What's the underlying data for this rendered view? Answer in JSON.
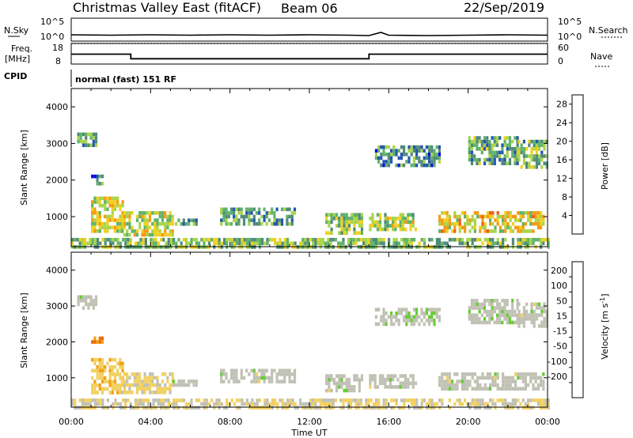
{
  "header": {
    "station": "Christmas Valley East (fitACF)",
    "beam": "Beam 06",
    "date": "22/Sep/2019"
  },
  "status_panels": {
    "nsky_label": "N.Sky",
    "nsky_ticks": [
      "10^5",
      "10^0"
    ],
    "nsearch_label": "N.Search",
    "nsearch_ticks": [
      "10^5",
      "10^0"
    ],
    "freq_label_1": "Freq.",
    "freq_label_2": "[MHz]",
    "freq_ticks": [
      "18",
      "8"
    ],
    "nave_label": "Nave",
    "nave_ticks": [
      "60",
      "0"
    ],
    "cpid_label": "CPID",
    "cpid_text": "normal (fast) 151 RF"
  },
  "x_axis": {
    "label": "Time UT",
    "tick_labels": [
      "00:00",
      "04:00",
      "08:00",
      "12:00",
      "16:00",
      "20:00",
      "00:00"
    ]
  },
  "colors": {
    "power_scale": [
      "#0a0ae6",
      "#2455b0",
      "#4f8a7a",
      "#5fb26a",
      "#a8d44a",
      "#f0d020",
      "#f59a10",
      "#ee5a14",
      "#e11a1a"
    ],
    "velocity_scale": [
      "#e60000",
      "#f06a00",
      "#f4a010",
      "#f2d060",
      "#c0c0b4",
      "#66cc33",
      "#3a9d40",
      "#3060b0",
      "#1a2ab8"
    ]
  },
  "chart_data": [
    {
      "type": "line",
      "panel": "N.Sky / N.Search",
      "x": [
        0,
        2,
        4,
        6,
        8,
        10,
        12,
        14,
        15,
        15.6,
        16,
        18,
        20,
        22,
        24
      ],
      "series": [
        {
          "name": "N.Sky",
          "values": [
            1.2,
            1.1,
            1.2,
            1.1,
            1.2,
            1.1,
            1.2,
            1.1,
            1.0,
            1.8,
            1.1,
            1.0,
            1.1,
            1.2,
            1.1
          ]
        }
      ],
      "ylim": [
        0,
        5
      ]
    },
    {
      "type": "line",
      "panel": "Freq. / Nave",
      "x": [
        0,
        3,
        3,
        15,
        15,
        24
      ],
      "series": [
        {
          "name": "Freq.",
          "values": [
            13,
            13,
            10.5,
            10.5,
            13,
            13
          ]
        },
        {
          "name": "Nave",
          "values": [
            19,
            19,
            19,
            19,
            19,
            19
          ]
        }
      ],
      "ylim": [
        8,
        18
      ]
    },
    {
      "type": "heatmap",
      "panel": "power",
      "title": "",
      "xlabel": "Time UT",
      "ylabel": "Slant Range [km]",
      "xlim": [
        0,
        24
      ],
      "ylim": [
        180,
        4500
      ],
      "yticks": [
        1000,
        2000,
        3000,
        4000
      ],
      "colorbar_label": "Power [dB]",
      "colorbar_range": [
        0,
        30
      ],
      "colorbar_ticks": [
        4,
        8,
        12,
        16,
        20,
        24,
        28
      ],
      "regions": [
        {
          "t0": 0.3,
          "t1": 1.2,
          "r0": 2950,
          "r1": 3300,
          "power": 10
        },
        {
          "t0": 1.0,
          "t1": 1.6,
          "r0": 1950,
          "r1": 2150,
          "power": 8
        },
        {
          "t0": 1.0,
          "t1": 2.6,
          "r0": 600,
          "r1": 1550,
          "power": 17
        },
        {
          "t0": 2.5,
          "t1": 5.1,
          "r0": 550,
          "r1": 1150,
          "power": 16
        },
        {
          "t0": 5.1,
          "t1": 6.3,
          "r0": 800,
          "r1": 950,
          "power": 9
        },
        {
          "t0": 7.5,
          "t1": 11.2,
          "r0": 850,
          "r1": 1250,
          "power": 10
        },
        {
          "t0": 12.8,
          "t1": 14.6,
          "r0": 600,
          "r1": 1100,
          "power": 14
        },
        {
          "t0": 15.0,
          "t1": 17.3,
          "r0": 700,
          "r1": 1100,
          "power": 15
        },
        {
          "t0": 15.3,
          "t1": 18.6,
          "r0": 2450,
          "r1": 2950,
          "power": 9
        },
        {
          "t0": 18.5,
          "t1": 23.8,
          "r0": 650,
          "r1": 1150,
          "power": 18
        },
        {
          "t0": 20.0,
          "t1": 22.5,
          "r0": 2500,
          "r1": 3200,
          "power": 11
        },
        {
          "t0": 22.5,
          "t1": 24.0,
          "r0": 2400,
          "r1": 3100,
          "power": 12
        },
        {
          "t0": 0.0,
          "t1": 24.0,
          "r0": 180,
          "r1": 420,
          "power": 13
        }
      ]
    },
    {
      "type": "heatmap",
      "panel": "velocity",
      "title": "",
      "xlabel": "Time UT",
      "ylabel": "Slant Range [km]",
      "xlim": [
        0,
        24
      ],
      "ylim": [
        180,
        4500
      ],
      "yticks": [
        1000,
        2000,
        3000,
        4000
      ],
      "colorbar_label": "Velocity [m s^-1]",
      "colorbar_range": [
        -250,
        250
      ],
      "colorbar_ticks": [
        200,
        100,
        50,
        15,
        -15,
        -50,
        -100,
        -200
      ],
      "regions": [
        {
          "t0": 0.3,
          "t1": 1.2,
          "r0": 2950,
          "r1": 3300,
          "velocity": 0
        },
        {
          "t0": 1.0,
          "t1": 1.6,
          "r0": 1950,
          "r1": 2150,
          "velocity": 150
        },
        {
          "t0": 1.0,
          "t1": 2.6,
          "r0": 600,
          "r1": 1550,
          "velocity": 70
        },
        {
          "t0": 2.5,
          "t1": 5.1,
          "r0": 550,
          "r1": 1150,
          "velocity": 40
        },
        {
          "t0": 5.1,
          "t1": 6.3,
          "r0": 800,
          "r1": 950,
          "velocity": 0
        },
        {
          "t0": 7.5,
          "t1": 11.2,
          "r0": 850,
          "r1": 1250,
          "velocity": 0
        },
        {
          "t0": 12.8,
          "t1": 14.6,
          "r0": 600,
          "r1": 1100,
          "velocity": 0
        },
        {
          "t0": 15.0,
          "t1": 17.3,
          "r0": 700,
          "r1": 1100,
          "velocity": 0
        },
        {
          "t0": 15.3,
          "t1": 18.6,
          "r0": 2450,
          "r1": 2950,
          "velocity": -10
        },
        {
          "t0": 18.5,
          "t1": 23.8,
          "r0": 650,
          "r1": 1150,
          "velocity": 0
        },
        {
          "t0": 20.0,
          "t1": 22.5,
          "r0": 2500,
          "r1": 3200,
          "velocity": -5
        },
        {
          "t0": 22.5,
          "t1": 24.0,
          "r0": 2400,
          "r1": 3100,
          "velocity": 0
        },
        {
          "t0": 0.0,
          "t1": 24.0,
          "r0": 180,
          "r1": 420,
          "velocity": 30
        }
      ]
    }
  ]
}
